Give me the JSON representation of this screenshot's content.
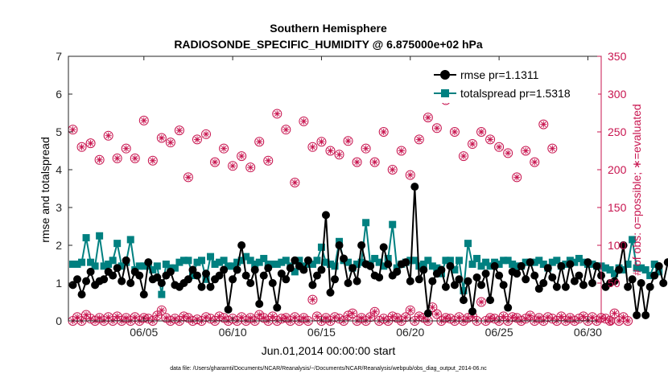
{
  "chart_data": {
    "type": "line",
    "title": "Southern Hemisphere",
    "subtitle": "RADIOSONDE_SPECIFIC_HUMIDITY @ 6.875000e+02 hPa",
    "xlabel": "Jun.01,2014 00:00:00 start",
    "ylabel_left": "rmse and totalspread",
    "ylabel_right": "# of obs: o=possible; ∗=evaluated",
    "footnote": "data file: /Users/gharamti/Documents/NCAR/Reanalysis/~/Documents/NCAR/Reanalysis/webpub/obs_diag_output_2014-06.nc",
    "xlim": [
      0.75,
      30.75
    ],
    "ylim_left": [
      0,
      7
    ],
    "ylim_right": [
      0,
      350
    ],
    "x_ticks": [
      5,
      10,
      15,
      20,
      25,
      30
    ],
    "x_tick_labels": [
      "06/05",
      "06/10",
      "06/15",
      "06/20",
      "06/25",
      "06/30"
    ],
    "y_left_ticks": [
      "0",
      "1",
      "2",
      "3",
      "4",
      "5",
      "6",
      "7"
    ],
    "y_right_ticks": [
      "0",
      "50",
      "100",
      "150",
      "200",
      "250",
      "300",
      "350"
    ],
    "x_step_days": 0.25,
    "x_start_day": 1,
    "legend_location": "top-right",
    "colors": {
      "rmse": "#000000",
      "totalspread": "#008080",
      "obs": "#c8144f"
    },
    "series": [
      {
        "name": "rmse pr=1.1311",
        "axis": "left",
        "values": [
          0.95,
          1.1,
          0.7,
          1.05,
          1.3,
          0.95,
          1.05,
          1.1,
          1.3,
          1.2,
          1.4,
          1.05,
          1.6,
          1.0,
          1.3,
          1.2,
          0.7,
          1.55,
          1.1,
          1.15,
          1.0,
          1.2,
          1.3,
          0.95,
          0.9,
          1.0,
          1.1,
          1.35,
          1.2,
          0.9,
          1.25,
          0.9,
          1.1,
          1.2,
          1.35,
          0.3,
          1.1,
          1.35,
          2.0,
          1.2,
          1.0,
          1.35,
          0.45,
          1.2,
          1.4,
          1.0,
          0.35,
          1.25,
          1.1,
          1.4,
          1.6,
          1.45,
          1.35,
          1.6,
          0.95,
          1.2,
          1.35,
          2.8,
          0.75,
          1.1,
          2.0,
          1.65,
          1.0,
          1.4,
          1.05,
          2.0,
          1.5,
          1.45,
          1.2,
          1.15,
          1.95,
          1.5,
          1.2,
          1.3,
          1.5,
          1.55,
          1.05,
          3.55,
          1.1,
          1.35,
          0.2,
          1.05,
          1.25,
          1.35,
          0.9,
          1.45,
          0.95,
          1.1,
          0.55,
          1.05,
          0.25,
          1.15,
          0.95,
          1.25,
          0.55,
          1.45,
          1.2,
          0.95,
          0.35,
          1.3,
          1.25,
          1.45,
          1.1,
          1.55,
          1.2,
          0.85,
          1.0,
          1.4,
          1.15,
          0.9,
          1.45,
          0.9,
          1.5,
          1.05,
          1.2,
          0.95,
          1.55,
          1.0,
          1.45,
          1.2,
          0.9,
          1.0,
          1.05,
          1.35,
          2.0,
          0.9,
          1.1,
          0.15,
          1.0,
          0.15,
          0.9,
          1.2,
          1.45,
          1.0,
          1.55
        ]
      },
      {
        "name": "totalspread pr=1.5318",
        "axis": "left",
        "values": [
          1.5,
          1.5,
          1.55,
          2.2,
          1.55,
          1.45,
          2.25,
          1.45,
          1.5,
          1.6,
          2.05,
          1.45,
          1.55,
          2.15,
          1.35,
          1.45,
          1.45,
          1.45,
          1.35,
          1.45,
          0.7,
          1.5,
          1.4,
          1.4,
          1.55,
          1.6,
          1.6,
          1.2,
          1.55,
          1.6,
          1.1,
          1.7,
          1.5,
          1.55,
          1.6,
          1.45,
          1.45,
          1.55,
          1.6,
          1.7,
          1.6,
          1.5,
          1.55,
          1.65,
          1.5,
          1.5,
          1.5,
          1.55,
          1.6,
          1.45,
          1.3,
          1.6,
          1.45,
          1.5,
          1.5,
          1.6,
          1.95,
          1.55,
          1.5,
          1.45,
          2.1,
          1.6,
          1.55,
          1.4,
          1.5,
          1.55,
          2.6,
          1.5,
          1.65,
          1.55,
          1.45,
          1.65,
          2.55,
          1.4,
          1.5,
          1.55,
          1.6,
          1.6,
          1.45,
          1.5,
          1.6,
          1.45,
          1.4,
          1.25,
          1.6,
          1.6,
          1.35,
          1.6,
          0.8,
          2.05,
          1.5,
          1.65,
          1.45,
          1.55,
          1.45,
          1.55,
          1.5,
          1.6,
          1.6,
          1.5,
          1.45,
          1.45,
          1.55,
          1.55,
          1.55,
          1.6,
          1.5,
          1.4,
          1.55,
          1.6,
          1.45,
          1.5,
          1.6,
          1.55,
          1.65,
          1.55,
          1.5,
          1.5,
          1.45,
          1.45,
          1.4,
          1.35,
          1.25,
          1.4,
          1.35,
          1.5,
          2.15,
          1.4,
          1.4,
          1.35,
          1.2,
          1.5,
          1.3
        ]
      },
      {
        "name": "obs possible",
        "axis": "right",
        "values": [
          253,
          0,
          230,
          0,
          235,
          0,
          213,
          0,
          245,
          0,
          215,
          0,
          228,
          0,
          215,
          0,
          265,
          0,
          212,
          0,
          242,
          0,
          236,
          0,
          252,
          0,
          190,
          0,
          240,
          0,
          247,
          0,
          210,
          0,
          228,
          0,
          205,
          0,
          218,
          0,
          203,
          0,
          237,
          0,
          212,
          0,
          274,
          0,
          253,
          0,
          183,
          0,
          264,
          0,
          230,
          0,
          237,
          0,
          225,
          0,
          220,
          0,
          238,
          0,
          210,
          0,
          228,
          0,
          210,
          0,
          250,
          0,
          200,
          0,
          225,
          0,
          193,
          0,
          240,
          0,
          269,
          0,
          255,
          0,
          292,
          0,
          250,
          0,
          218,
          0,
          234,
          0,
          250,
          0,
          240,
          0,
          230,
          0,
          222,
          0,
          190,
          0,
          225,
          0,
          210,
          0,
          260,
          0,
          228,
          0
        ],
        "x_offset": 0
      },
      {
        "name": "obs possible (low)",
        "axis": "right",
        "values": [
          0,
          5,
          0,
          8,
          3,
          0,
          4,
          0,
          5,
          0,
          6,
          0,
          4,
          0,
          5,
          0,
          4,
          3,
          0,
          7,
          14,
          4,
          0,
          3,
          0,
          6,
          4,
          0,
          2,
          0,
          5,
          3,
          0,
          6,
          4,
          0,
          3,
          0,
          5,
          0,
          4,
          0,
          8,
          4,
          0,
          6,
          0,
          3,
          4,
          0,
          5,
          0,
          4,
          0,
          28,
          6,
          0,
          4,
          0,
          5,
          3,
          0,
          7,
          10,
          0,
          4,
          0,
          5,
          12,
          0,
          3,
          0,
          6,
          4,
          0,
          5,
          14,
          0,
          6,
          4,
          0,
          18,
          9,
          0,
          4,
          3,
          0,
          5,
          0,
          4,
          6,
          0,
          25,
          0,
          4,
          3,
          0,
          6,
          0,
          5,
          4,
          0,
          3,
          7,
          0,
          4,
          0,
          5,
          3,
          0,
          6,
          0,
          4,
          0,
          3,
          6,
          0,
          5,
          0,
          4,
          3,
          0,
          10,
          0,
          5,
          0
        ]
      }
    ]
  }
}
